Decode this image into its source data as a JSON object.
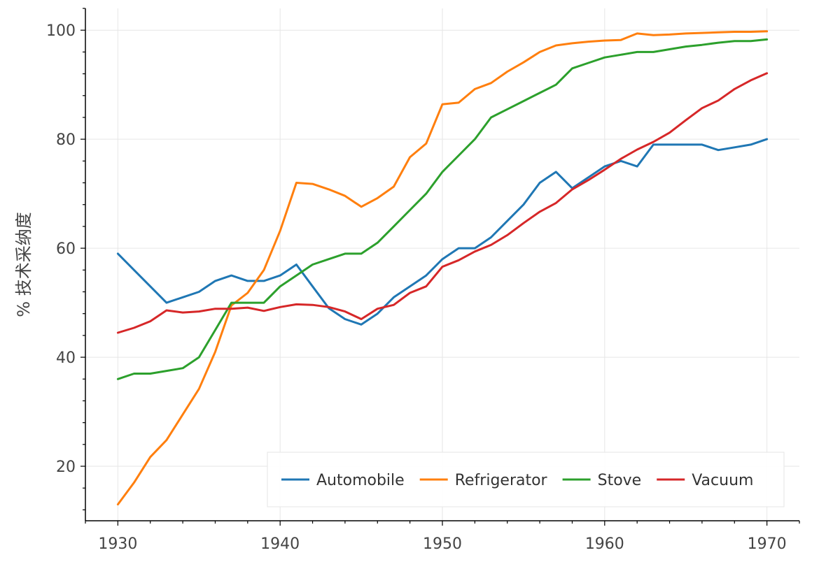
{
  "chart_data": {
    "type": "line",
    "title": "",
    "xlabel": "",
    "ylabel": "% 技术采纳度",
    "xlim": [
      1928,
      1972
    ],
    "ylim": [
      10,
      104
    ],
    "x_ticks": [
      1930,
      1940,
      1950,
      1960,
      1970
    ],
    "y_ticks": [
      20,
      40,
      60,
      80,
      100
    ],
    "grid": true,
    "legend_position": "bottom-right",
    "x": [
      1930,
      1931,
      1932,
      1933,
      1934,
      1935,
      1936,
      1937,
      1938,
      1939,
      1940,
      1941,
      1942,
      1943,
      1944,
      1945,
      1946,
      1947,
      1948,
      1949,
      1950,
      1951,
      1952,
      1953,
      1954,
      1955,
      1956,
      1957,
      1958,
      1959,
      1960,
      1961,
      1962,
      1963,
      1964,
      1965,
      1966,
      1967,
      1968,
      1969,
      1970
    ],
    "series": [
      {
        "name": "Automobile",
        "color": "#1f77b4",
        "values": [
          59,
          56,
          53,
          50,
          51,
          52,
          54,
          55,
          54,
          54,
          55,
          57,
          53,
          49,
          47,
          46,
          48,
          51,
          53,
          55,
          58,
          60,
          60,
          62,
          65,
          68,
          72,
          74,
          71,
          73,
          75,
          76,
          75,
          79,
          79,
          79,
          79,
          78,
          78.5,
          79,
          80
        ]
      },
      {
        "name": "Refrigerator",
        "color": "#ff7f0e",
        "values": [
          13,
          17,
          21.7,
          24.8,
          29.5,
          34.2,
          41,
          49.5,
          51.8,
          56,
          63.2,
          72,
          71.8,
          70.8,
          69.6,
          67.6,
          69.2,
          71.3,
          76.7,
          79.2,
          86.4,
          86.7,
          89.2,
          90.3,
          92.4,
          94.1,
          96,
          97.2,
          97.6,
          97.9,
          98.1,
          98.2,
          99.4,
          99.1,
          99.2,
          99.4,
          99.5,
          99.6,
          99.7,
          99.7,
          99.8
        ]
      },
      {
        "name": "Stove",
        "color": "#2ca02c",
        "values": [
          36,
          37,
          37,
          37.5,
          38,
          40,
          45,
          50,
          50,
          50,
          53,
          55,
          57,
          58,
          59,
          59,
          61,
          64,
          67,
          70,
          74,
          77,
          80,
          84,
          85.5,
          87,
          88.5,
          90,
          93,
          94,
          95,
          95.5,
          96,
          96,
          96.5,
          97,
          97.3,
          97.7,
          98,
          98,
          98.3
        ]
      },
      {
        "name": "Vacuum",
        "color": "#d62728",
        "values": [
          44.5,
          45.4,
          46.6,
          48.6,
          48.2,
          48.4,
          48.9,
          48.9,
          49.1,
          48.5,
          49.2,
          49.7,
          49.6,
          49.2,
          48.4,
          47,
          48.9,
          49.6,
          51.8,
          53,
          56.6,
          57.8,
          59.4,
          60.6,
          62.4,
          64.6,
          66.7,
          68.3,
          70.8,
          72.5,
          74.4,
          76.4,
          78.1,
          79.5,
          81.2,
          83.5,
          85.7,
          87.1,
          89.2,
          90.8,
          92.1
        ]
      }
    ]
  }
}
